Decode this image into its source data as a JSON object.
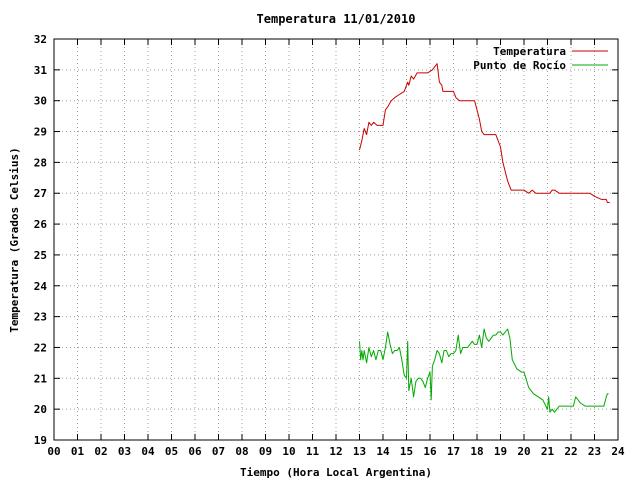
{
  "chart_data": {
    "type": "line",
    "title": "Temperatura 11/01/2010",
    "xlabel": "Tiempo (Hora Local Argentina)",
    "ylabel": "Temperatura (Grados Celsius)",
    "xlim": [
      0,
      24
    ],
    "ylim": [
      19,
      32
    ],
    "x_ticks": [
      "00",
      "01",
      "02",
      "03",
      "04",
      "05",
      "06",
      "07",
      "08",
      "09",
      "10",
      "11",
      "12",
      "13",
      "14",
      "15",
      "16",
      "17",
      "18",
      "19",
      "20",
      "21",
      "22",
      "23",
      "24"
    ],
    "y_ticks": [
      "19",
      "20",
      "21",
      "22",
      "23",
      "24",
      "25",
      "26",
      "27",
      "28",
      "29",
      "30",
      "31",
      "32"
    ],
    "grid": true,
    "legend_position": "top-right",
    "series": [
      {
        "name": "Temperatura",
        "color": "#cc0000",
        "x": [
          13.0,
          13.1,
          13.2,
          13.3,
          13.4,
          13.5,
          13.6,
          13.75,
          14.0,
          14.1,
          14.2,
          14.35,
          14.5,
          14.7,
          14.9,
          15.05,
          15.1,
          15.2,
          15.3,
          15.45,
          15.6,
          15.75,
          15.9,
          16.1,
          16.2,
          16.3,
          16.4,
          16.5,
          16.55,
          16.7,
          16.9,
          17.0,
          17.1,
          17.25,
          17.5,
          17.7,
          17.9,
          18.0,
          18.1,
          18.2,
          18.3,
          18.5,
          18.8,
          19.0,
          19.1,
          19.3,
          19.45,
          19.55,
          19.8,
          20.0,
          20.2,
          20.35,
          20.5,
          20.8,
          21.0,
          21.1,
          21.2,
          21.3,
          21.5,
          21.8,
          22.0,
          22.2,
          22.4,
          22.6,
          22.8,
          23.0,
          23.3,
          23.5,
          23.55,
          23.65
        ],
        "values": [
          28.4,
          28.7,
          29.1,
          28.9,
          29.3,
          29.2,
          29.3,
          29.2,
          29.2,
          29.7,
          29.8,
          30.0,
          30.1,
          30.2,
          30.3,
          30.6,
          30.5,
          30.8,
          30.7,
          30.9,
          30.9,
          30.9,
          30.9,
          31.0,
          31.1,
          31.2,
          30.6,
          30.5,
          30.3,
          30.3,
          30.3,
          30.3,
          30.1,
          30.0,
          30.0,
          30.0,
          30.0,
          29.7,
          29.4,
          29.0,
          28.9,
          28.9,
          28.9,
          28.5,
          28.0,
          27.4,
          27.1,
          27.1,
          27.1,
          27.1,
          27.0,
          27.1,
          27.0,
          27.0,
          27.0,
          27.0,
          27.1,
          27.1,
          27.0,
          27.0,
          27.0,
          27.0,
          27.0,
          27.0,
          27.0,
          26.9,
          26.8,
          26.8,
          26.7,
          26.7
        ]
      },
      {
        "name": "Punto de Rocío",
        "color": "#00aa00",
        "x": [
          13.0,
          13.05,
          13.1,
          13.15,
          13.2,
          13.3,
          13.4,
          13.5,
          13.6,
          13.7,
          13.8,
          13.9,
          14.0,
          14.1,
          14.2,
          14.3,
          14.4,
          14.5,
          14.6,
          14.7,
          14.8,
          14.9,
          15.0,
          15.05,
          15.1,
          15.2,
          15.3,
          15.4,
          15.5,
          15.6,
          15.7,
          15.8,
          15.9,
          16.0,
          16.05,
          16.1,
          16.2,
          16.3,
          16.4,
          16.5,
          16.6,
          16.7,
          16.8,
          16.9,
          17.0,
          17.1,
          17.2,
          17.3,
          17.4,
          17.5,
          17.6,
          17.7,
          17.8,
          17.9,
          18.0,
          18.1,
          18.2,
          18.3,
          18.4,
          18.5,
          18.6,
          18.7,
          18.8,
          18.9,
          19.0,
          19.1,
          19.2,
          19.3,
          19.4,
          19.5,
          19.7,
          19.9,
          20.0,
          20.2,
          20.4,
          20.6,
          20.8,
          21.0,
          21.05,
          21.1,
          21.2,
          21.3,
          21.5,
          21.8,
          22.0,
          22.1,
          22.2,
          22.4,
          22.6,
          22.8,
          23.0,
          23.2,
          23.3,
          23.4,
          23.5,
          23.55,
          23.6
        ],
        "values": [
          22.2,
          21.6,
          21.9,
          21.6,
          21.9,
          21.5,
          22.0,
          21.7,
          21.9,
          21.6,
          21.9,
          21.9,
          21.6,
          22.0,
          22.5,
          22.1,
          21.8,
          21.9,
          21.9,
          22.0,
          21.6,
          21.1,
          21.0,
          22.2,
          20.6,
          21.0,
          20.4,
          20.9,
          21.0,
          21.0,
          20.9,
          20.7,
          21.0,
          21.2,
          20.3,
          21.4,
          21.6,
          21.9,
          21.8,
          21.5,
          21.9,
          21.9,
          21.7,
          21.8,
          21.8,
          21.9,
          22.4,
          21.8,
          22.0,
          22.0,
          22.0,
          22.1,
          22.2,
          22.1,
          22.1,
          22.4,
          22.0,
          22.6,
          22.3,
          22.2,
          22.3,
          22.4,
          22.4,
          22.5,
          22.5,
          22.4,
          22.5,
          22.6,
          22.3,
          21.6,
          21.3,
          21.2,
          21.2,
          20.7,
          20.5,
          20.4,
          20.3,
          20.0,
          20.4,
          19.9,
          20.0,
          19.9,
          20.1,
          20.1,
          20.1,
          20.1,
          20.4,
          20.2,
          20.1,
          20.1,
          20.1,
          20.1,
          20.1,
          20.1,
          20.4,
          20.5,
          20.5
        ]
      }
    ]
  }
}
